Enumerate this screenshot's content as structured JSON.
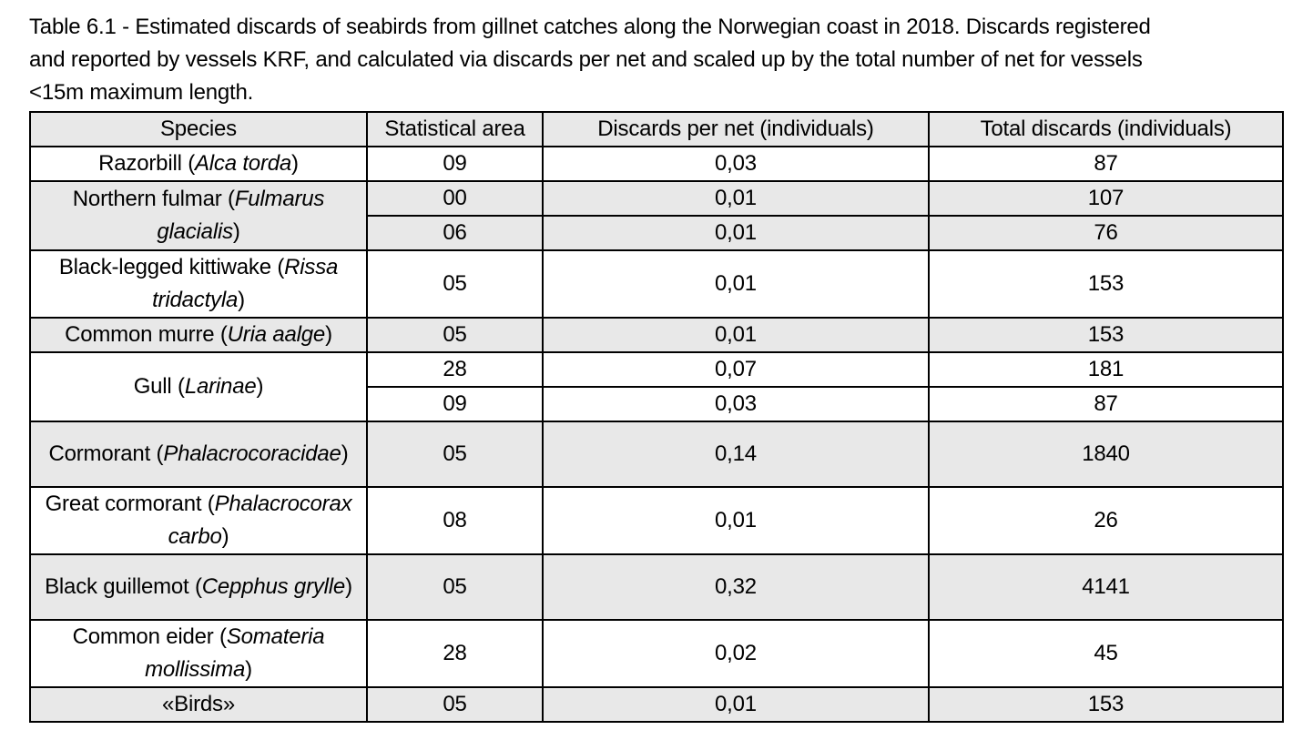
{
  "caption": "Table 6.1 - Estimated discards of seabirds from gillnet catches along the Norwegian coast in 2018. Discards registered and reported by vessels KRF, and calculated via discards per net  and scaled up by the total number of net for vessels <15m maximum length.",
  "caption_lines": [
    "Table 6.1 - Estimated discards of seabirds from gillnet catches along the Norwegian coast in 2018. Discards registered",
    "and reported by vessels KRF, and calculated via discards per net  and scaled up by the total number of net for vessels",
    "<15m maximum length."
  ],
  "headers": [
    "Species",
    "Statistical area",
    "Discards per net (individuals)",
    "Total discards (individuals)"
  ],
  "groups": [
    {
      "shade": false,
      "name": "Razorbill (",
      "latin": "Alca torda",
      "close": ")",
      "rows": [
        [
          "09",
          "0,03",
          "87"
        ]
      ]
    },
    {
      "shade": true,
      "name": "Northern fulmar (",
      "latin": "Fulmarus glacialis",
      "close": ")",
      "rows": [
        [
          "00",
          "0,01",
          "107"
        ],
        [
          "06",
          "0,01",
          "76"
        ]
      ]
    },
    {
      "shade": false,
      "name": "Black-legged kittiwake (",
      "latin": "Rissa tridactyla",
      "close": ")",
      "rows": [
        [
          "05",
          "0,01",
          "153"
        ]
      ]
    },
    {
      "shade": true,
      "name": "Common murre (",
      "latin": "Uria aalge",
      "close": ")",
      "rows": [
        [
          "05",
          "0,01",
          "153"
        ]
      ]
    },
    {
      "shade": false,
      "name": "Gull (",
      "latin": "Larinae",
      "close": ")",
      "rows": [
        [
          "28",
          "0,07",
          "181"
        ],
        [
          "09",
          "0,03",
          "87"
        ]
      ]
    },
    {
      "shade": true,
      "name": "Cormorant (",
      "latin": "Phalacrocoracidae",
      "close": ")",
      "rows": [
        [
          "05",
          "0,14",
          "1840"
        ]
      ]
    },
    {
      "shade": false,
      "name": "Great cormorant (",
      "latin": "Phalacrocorax carbo",
      "close": ")",
      "rows": [
        [
          "08",
          "0,01",
          "26"
        ]
      ]
    },
    {
      "shade": true,
      "name": "Black guillemot (",
      "latin": "Cepphus grylle",
      "close": ")",
      "rows": [
        [
          "05",
          "0,32",
          "4141"
        ]
      ]
    },
    {
      "shade": false,
      "name": "Common eider (",
      "latin": "Somateria mollissima",
      "close": ")",
      "rows": [
        [
          "28",
          "0,02",
          "45"
        ]
      ]
    },
    {
      "shade": true,
      "name": "«Birds»",
      "latin": "",
      "close": "",
      "rows": [
        [
          "05",
          "0,01",
          "153"
        ]
      ]
    }
  ],
  "colors": {
    "shade": "#e8e8e8",
    "border": "#000000"
  }
}
